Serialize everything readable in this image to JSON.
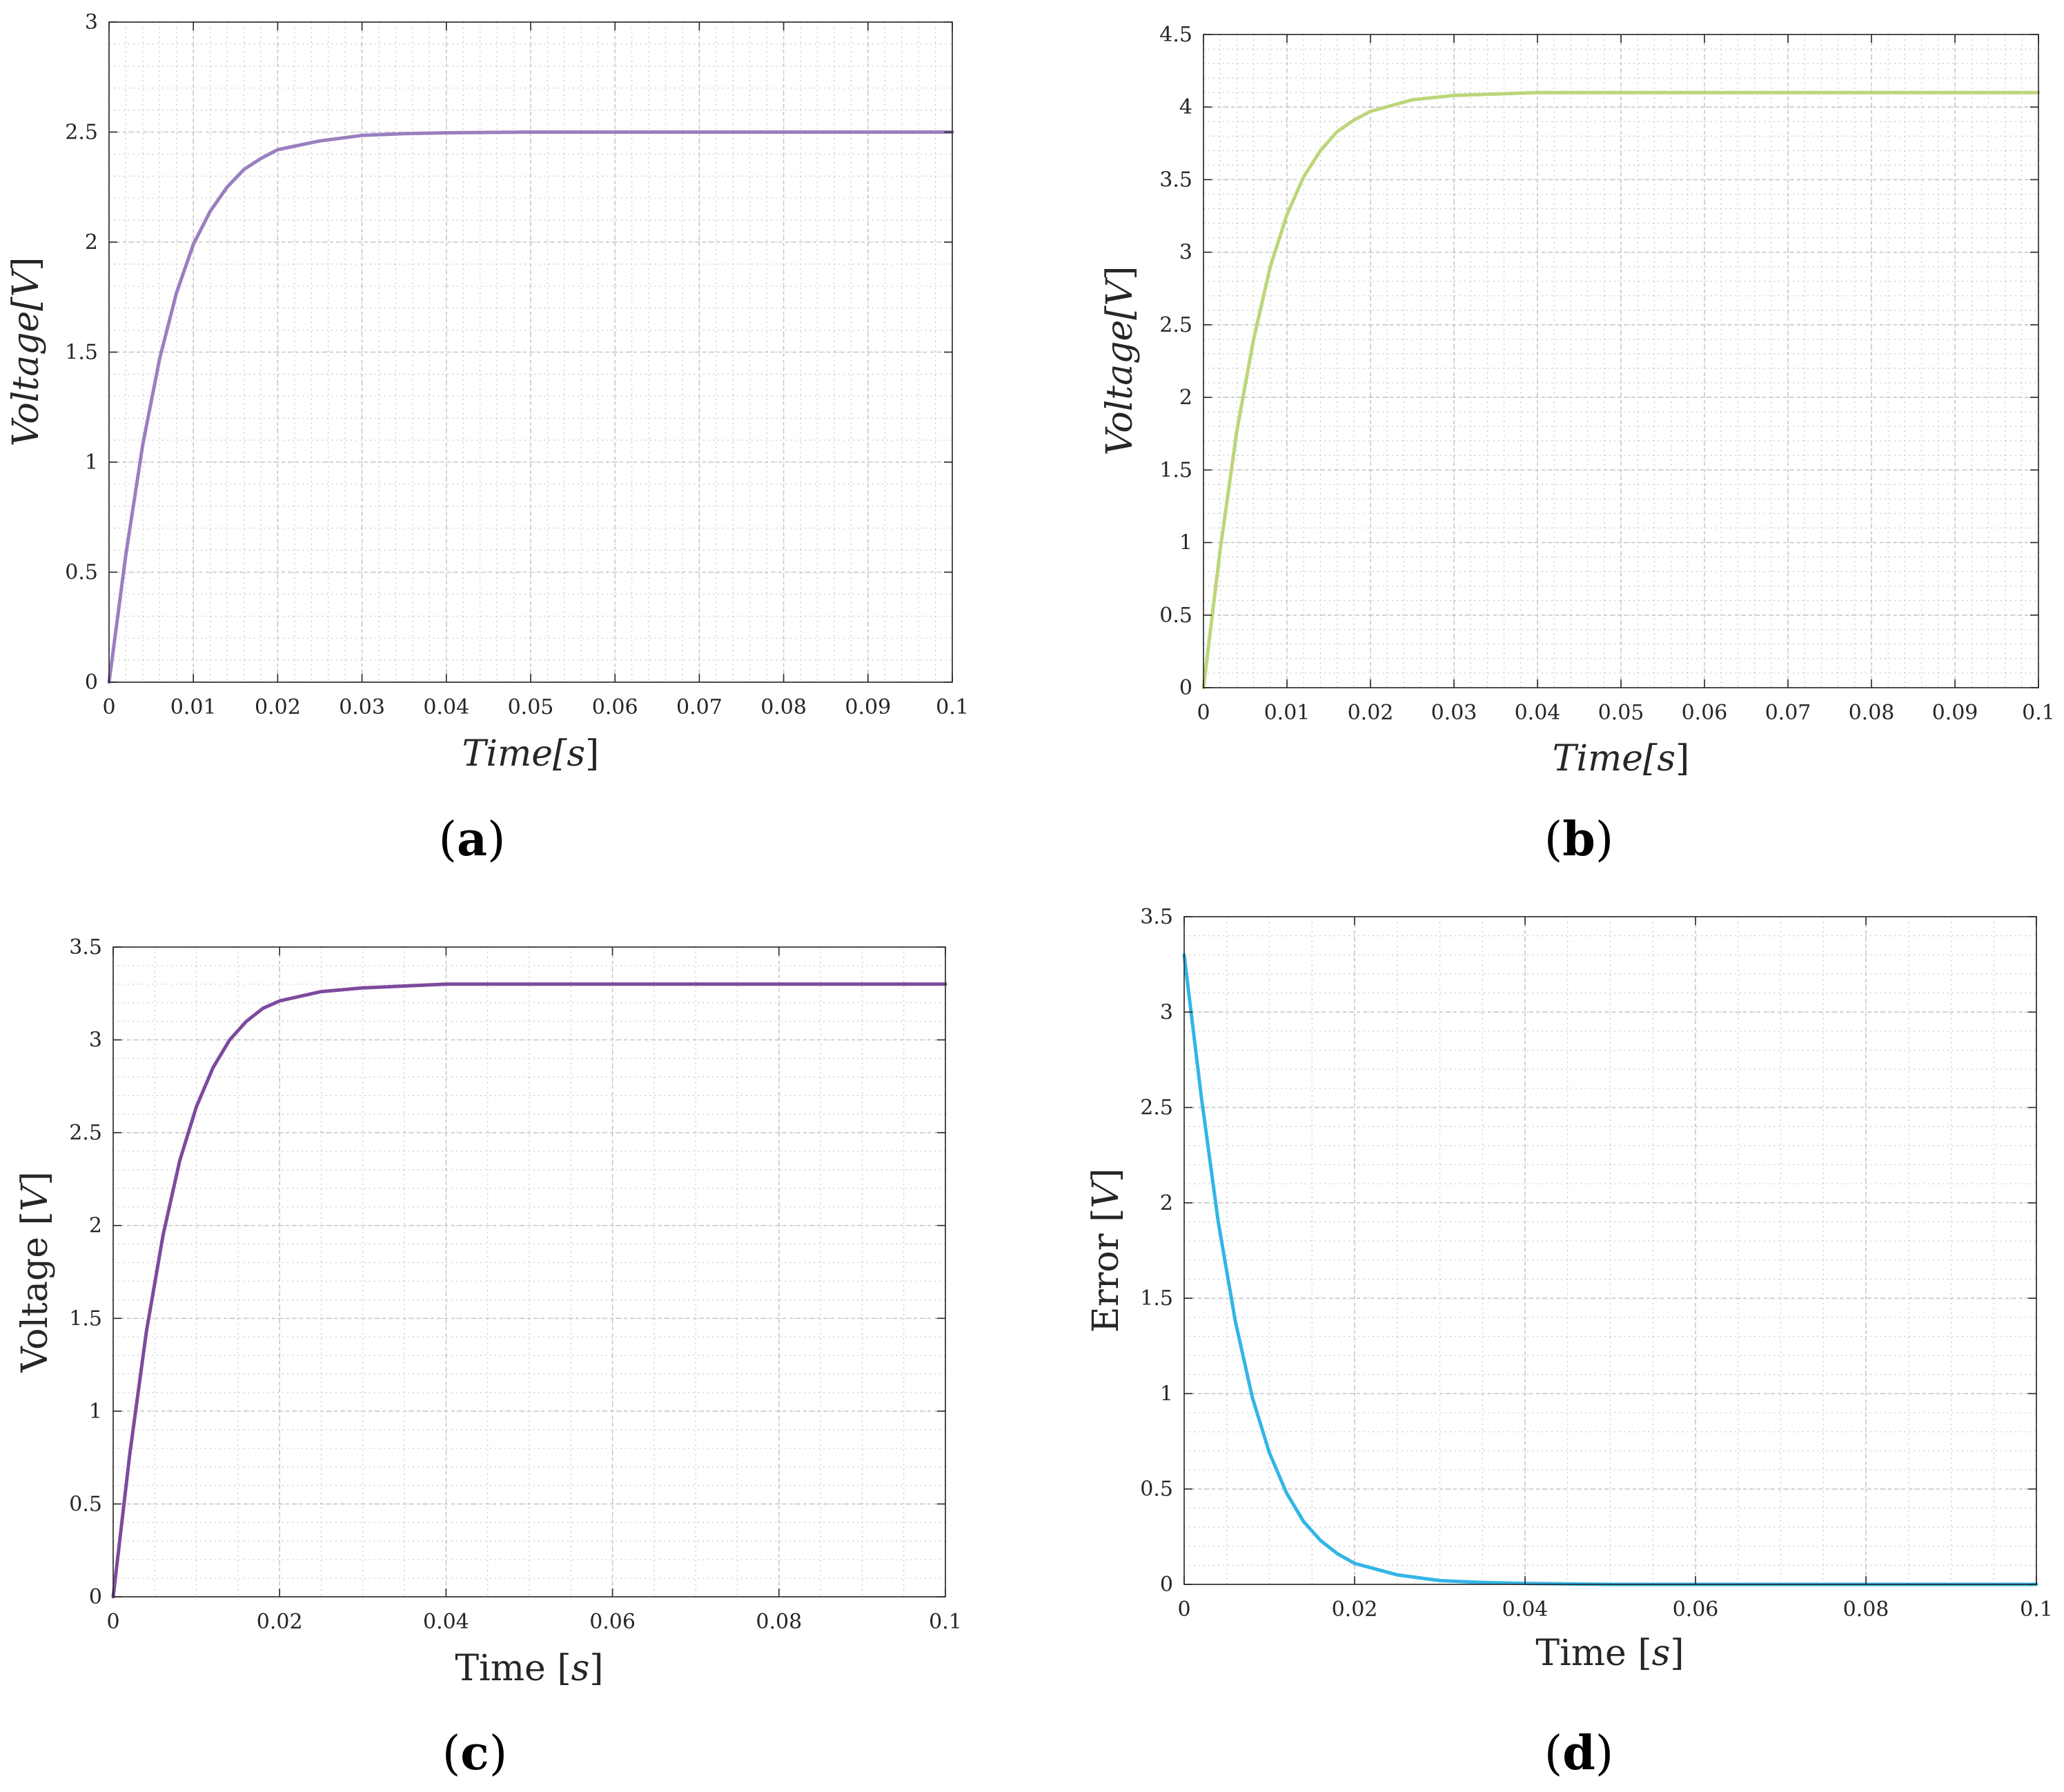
{
  "figure": {
    "panels": [
      "a",
      "b",
      "c",
      "d"
    ]
  },
  "chart_data": [
    {
      "id": "a",
      "caption_open": "(",
      "caption_letter": "a",
      "caption_close": ")",
      "type": "line",
      "title": "",
      "xlabel": "Time[s]",
      "ylabel": "Voltage[V]",
      "label_style": "italic",
      "xlim": [
        0,
        0.1
      ],
      "ylim": [
        0,
        3
      ],
      "xticks": [
        0,
        0.01,
        0.02,
        0.03,
        0.04,
        0.05,
        0.06,
        0.07,
        0.08,
        0.09,
        0.1
      ],
      "xtick_labels": [
        "0",
        "0.01",
        "0.02",
        "0.03",
        "0.04",
        "0.05",
        "0.06",
        "0.07",
        "0.08",
        "0.09",
        "0.1"
      ],
      "yticks": [
        0,
        0.5,
        1,
        1.5,
        2,
        2.5,
        3
      ],
      "ytick_labels": [
        "0",
        "0.5",
        "1",
        "1.5",
        "2",
        "2.5",
        "3"
      ],
      "grid": true,
      "minor_grid": {
        "x": 0.002,
        "y": 0.1
      },
      "series": [
        {
          "name": "Voltage",
          "color": "#9a7fbf",
          "x": [
            0,
            0.002,
            0.004,
            0.006,
            0.008,
            0.01,
            0.012,
            0.014,
            0.016,
            0.018,
            0.02,
            0.025,
            0.03,
            0.035,
            0.04,
            0.05,
            0.06,
            0.07,
            0.08,
            0.09,
            0.1
          ],
          "y": [
            0,
            0.58,
            1.08,
            1.47,
            1.77,
            1.99,
            2.14,
            2.25,
            2.33,
            2.38,
            2.42,
            2.46,
            2.485,
            2.493,
            2.497,
            2.5,
            2.5,
            2.5,
            2.5,
            2.5,
            2.5
          ]
        }
      ]
    },
    {
      "id": "b",
      "caption_open": "(",
      "caption_letter": "b",
      "caption_close": ")",
      "type": "line",
      "title": "",
      "xlabel": "Time[s]",
      "ylabel": "Voltage[V]",
      "label_style": "italic",
      "xlim": [
        0,
        0.1
      ],
      "ylim": [
        0,
        4.5
      ],
      "xticks": [
        0,
        0.01,
        0.02,
        0.03,
        0.04,
        0.05,
        0.06,
        0.07,
        0.08,
        0.09,
        0.1
      ],
      "xtick_labels": [
        "0",
        "0.01",
        "0.02",
        "0.03",
        "0.04",
        "0.05",
        "0.06",
        "0.07",
        "0.08",
        "0.09",
        "0.1"
      ],
      "yticks": [
        0,
        0.5,
        1,
        1.5,
        2,
        2.5,
        3,
        3.5,
        4,
        4.5
      ],
      "ytick_labels": [
        "0",
        "0.5",
        "1",
        "1.5",
        "2",
        "2.5",
        "3",
        "3.5",
        "4",
        "4.5"
      ],
      "grid": true,
      "minor_grid": {
        "x": 0.002,
        "y": 0.1
      },
      "series": [
        {
          "name": "Voltage",
          "color": "#bcd67a",
          "x": [
            0,
            0.002,
            0.004,
            0.006,
            0.008,
            0.01,
            0.012,
            0.014,
            0.016,
            0.018,
            0.02,
            0.025,
            0.03,
            0.035,
            0.04,
            0.05,
            0.06,
            0.07,
            0.08,
            0.09,
            0.1
          ],
          "y": [
            0,
            0.95,
            1.77,
            2.4,
            2.9,
            3.26,
            3.52,
            3.7,
            3.83,
            3.91,
            3.97,
            4.05,
            4.08,
            4.09,
            4.1,
            4.1,
            4.1,
            4.1,
            4.1,
            4.1,
            4.1
          ]
        }
      ]
    },
    {
      "id": "c",
      "caption_open": "(",
      "caption_letter": "c",
      "caption_close": ")",
      "type": "line",
      "title": "",
      "xlabel": "Time [s]",
      "ylabel": "Voltage [V]",
      "label_style": "upright",
      "xlim": [
        0,
        0.1
      ],
      "ylim": [
        0,
        3.5
      ],
      "xticks": [
        0,
        0.02,
        0.04,
        0.06,
        0.08,
        0.1
      ],
      "xtick_labels": [
        "0",
        "0.02",
        "0.04",
        "0.06",
        "0.08",
        "0.1"
      ],
      "yticks": [
        0,
        0.5,
        1,
        1.5,
        2,
        2.5,
        3,
        3.5
      ],
      "ytick_labels": [
        "0",
        "0.5",
        "1",
        "1.5",
        "2",
        "2.5",
        "3",
        "3.5"
      ],
      "grid": true,
      "minor_grid": {
        "x": 0.005,
        "y": 0.1
      },
      "series": [
        {
          "name": "Voltage",
          "color": "#7d4a9e",
          "x": [
            0,
            0.002,
            0.004,
            0.006,
            0.008,
            0.01,
            0.012,
            0.014,
            0.016,
            0.018,
            0.02,
            0.025,
            0.03,
            0.035,
            0.04,
            0.05,
            0.06,
            0.07,
            0.08,
            0.09,
            0.1
          ],
          "y": [
            0,
            0.77,
            1.43,
            1.95,
            2.35,
            2.64,
            2.85,
            3.0,
            3.1,
            3.17,
            3.21,
            3.26,
            3.28,
            3.29,
            3.3,
            3.3,
            3.3,
            3.3,
            3.3,
            3.3,
            3.3
          ]
        }
      ]
    },
    {
      "id": "d",
      "caption_open": "(",
      "caption_letter": "d",
      "caption_close": ")",
      "type": "line",
      "title": "",
      "xlabel": "Time [s]",
      "ylabel": "Error [V]",
      "label_style": "upright",
      "xlim": [
        0,
        0.1
      ],
      "ylim": [
        0,
        3.5
      ],
      "xticks": [
        0,
        0.02,
        0.04,
        0.06,
        0.08,
        0.1
      ],
      "xtick_labels": [
        "0",
        "0.02",
        "0.04",
        "0.06",
        "0.08",
        "0.1"
      ],
      "yticks": [
        0,
        0.5,
        1,
        1.5,
        2,
        2.5,
        3,
        3.5
      ],
      "ytick_labels": [
        "0",
        "0.5",
        "1",
        "1.5",
        "2",
        "2.5",
        "3",
        "3.5"
      ],
      "grid": true,
      "minor_grid": {
        "x": 0.005,
        "y": 0.1
      },
      "series": [
        {
          "name": "Error",
          "color": "#33b5e5",
          "x": [
            0,
            0.002,
            0.004,
            0.006,
            0.008,
            0.01,
            0.012,
            0.014,
            0.016,
            0.018,
            0.02,
            0.025,
            0.03,
            0.035,
            0.04,
            0.05,
            0.06,
            0.07,
            0.08,
            0.09,
            0.1
          ],
          "y": [
            3.3,
            2.56,
            1.9,
            1.38,
            0.98,
            0.69,
            0.48,
            0.33,
            0.23,
            0.16,
            0.11,
            0.05,
            0.02,
            0.01,
            0.005,
            0,
            0,
            0,
            0,
            0,
            0
          ]
        }
      ]
    }
  ]
}
